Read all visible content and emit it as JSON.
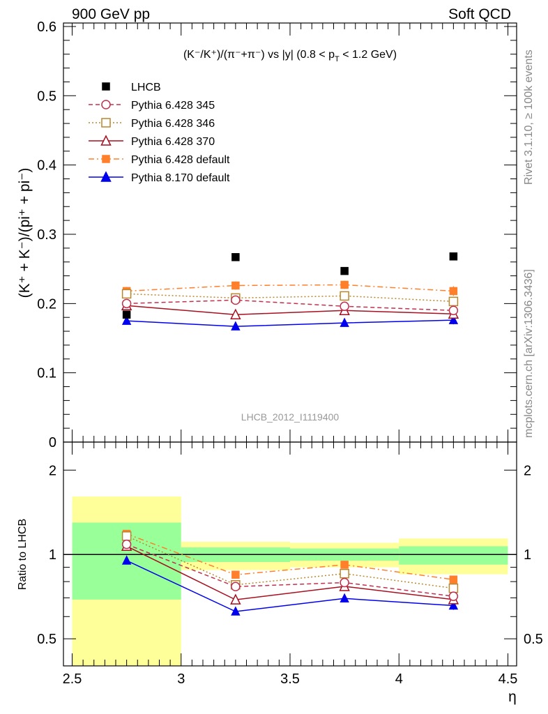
{
  "header": {
    "left": "900 GeV pp",
    "right": "Soft QCD"
  },
  "side_labels": {
    "rivet": "Rivet 3.1.10, ≥ 100k events",
    "mcplots": "mcplots.cern.ch [arXiv:1306.3436]"
  },
  "watermark": "LHCB_2012_I1119400",
  "chart_data": [
    {
      "type": "line",
      "title": "(K⁻/K⁺)/(π⁻+π⁻) vs |y| (0.8 < p",
      "title_sub": "T",
      "title_end": " < 1.2 GeV)",
      "ylabel": "(K⁺ + K⁻)/(pi⁺ + pi⁻)",
      "xlabel": "η",
      "xlim": [
        2.46,
        4.54
      ],
      "ylim": [
        0,
        0.605
      ],
      "xticks": [
        "2.5",
        "3",
        "3.5",
        "4",
        "4.5"
      ],
      "xtick_values": [
        2.5,
        3,
        3.5,
        4,
        4.5
      ],
      "yticks": [
        "0",
        "0.1",
        "0.2",
        "0.3",
        "0.4",
        "0.5",
        "0.6"
      ],
      "ytick_values": [
        0,
        0.1,
        0.2,
        0.3,
        0.4,
        0.5,
        0.6
      ],
      "legend_position": "top-left",
      "x": [
        2.75,
        3.25,
        3.75,
        4.25
      ],
      "series": [
        {
          "name": "LHCB",
          "values": [
            0.184,
            0.267,
            0.247,
            0.268
          ],
          "err": [
            0.002,
            0.002,
            0.002,
            0.002
          ],
          "color": "#000000",
          "marker": "square-filled",
          "dash": "none",
          "line": false
        },
        {
          "name": "Pythia 6.428 345",
          "values": [
            0.2,
            0.205,
            0.196,
            0.19
          ],
          "err": [
            0.005,
            0.005,
            0.005,
            0.005
          ],
          "color": "#c0304f",
          "marker": "circle-open",
          "dash": "6,4",
          "line": true
        },
        {
          "name": "Pythia 6.428 346",
          "values": [
            0.214,
            0.208,
            0.211,
            0.203
          ],
          "err": [
            0.005,
            0.005,
            0.005,
            0.005
          ],
          "color": "#b8862b",
          "marker": "square-open",
          "dash": "2,3",
          "line": true
        },
        {
          "name": "Pythia 6.428 370",
          "values": [
            0.197,
            0.184,
            0.19,
            0.185
          ],
          "err": [
            0.005,
            0.005,
            0.005,
            0.005
          ],
          "color": "#a50f1f",
          "marker": "triangle-open",
          "dash": "none",
          "line": true
        },
        {
          "name": "Pythia 6.428 default",
          "values": [
            0.218,
            0.226,
            0.227,
            0.218
          ],
          "err": [
            0.006,
            0.006,
            0.006,
            0.007
          ],
          "color": "#ff7f2a",
          "marker": "square-filled",
          "dash": "8,4,2,4",
          "line": true
        },
        {
          "name": "Pythia 8.170 default",
          "values": [
            0.175,
            0.167,
            0.172,
            0.176
          ],
          "err": [
            0.004,
            0.004,
            0.005,
            0.006
          ],
          "color": "#0000ee",
          "marker": "triangle-filled",
          "dash": "none",
          "line": true
        }
      ]
    },
    {
      "type": "line",
      "title": "",
      "ylabel": "Ratio to LHCB",
      "yscale": "log",
      "ylim": [
        0.4,
        2.52
      ],
      "yticks": [
        "0.5",
        "1",
        "2"
      ],
      "ytick_values": [
        0.5,
        1,
        2
      ],
      "reference": 1,
      "bins": [
        [
          2.5,
          3
        ],
        [
          3,
          3.5
        ],
        [
          3.5,
          4
        ],
        [
          4,
          4.5
        ]
      ],
      "band_yellow": [
        [
          0.38,
          1.61
        ],
        [
          0.88,
          1.11
        ],
        [
          0.9,
          1.1
        ],
        [
          0.85,
          1.14
        ]
      ],
      "band_green": [
        [
          0.69,
          1.3
        ],
        [
          0.94,
          1.06
        ],
        [
          0.95,
          1.05
        ],
        [
          0.92,
          1.07
        ]
      ],
      "band_colors": {
        "yellow": "#ffff99",
        "green": "#99ff99"
      },
      "ratio_of": "series values divided by LHCB values"
    }
  ]
}
